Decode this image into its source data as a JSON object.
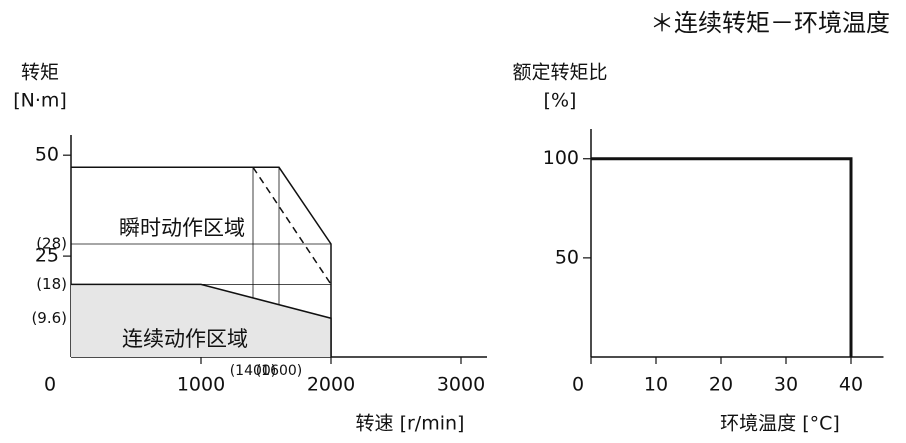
{
  "header": "＊连续转矩－环境温度",
  "chart_data": [
    {
      "type": "line",
      "ylabel": [
        "转矩",
        "[N·m]"
      ],
      "xlabel": "转速 [r/min]",
      "xlim": [
        0,
        3200
      ],
      "ylim": [
        0,
        55
      ],
      "xticks": [
        0,
        1000,
        {
          "value": 1400,
          "label": "(1400)"
        },
        {
          "value": 1600,
          "label": "(1600)"
        },
        2000,
        3000
      ],
      "yticks": [
        {
          "value": 9.6,
          "label": "(9.6)"
        },
        {
          "value": 18,
          "label": "(18)"
        },
        25,
        {
          "value": 28,
          "label": "(28)"
        },
        50
      ],
      "guides": true,
      "series": [
        {
          "name": "瞬时动作区域",
          "color": "#111111",
          "x": [
            0,
            1600,
            2000,
            2000
          ],
          "values": [
            47,
            47,
            28,
            0
          ]
        },
        {
          "name": "连续动作区域",
          "color": "#111111",
          "fill": "#e6e6e6",
          "x": [
            0,
            1000,
            2000,
            2000
          ],
          "values": [
            18,
            18,
            9.6,
            0
          ]
        },
        {
          "color": "#111111",
          "dash": true,
          "x": [
            1400,
            2000
          ],
          "values": [
            47,
            18
          ]
        }
      ]
    },
    {
      "type": "line",
      "ylabel": [
        "额定转矩比",
        "[%]"
      ],
      "xlabel": "环境温度 [°C]",
      "xlim": [
        0,
        45
      ],
      "ylim": [
        0,
        115
      ],
      "xticks": [
        0,
        10,
        20,
        30,
        40
      ],
      "yticks": [
        50,
        100
      ],
      "series": [
        {
          "color": "#111111",
          "width": 3,
          "x": [
            0,
            40,
            40
          ],
          "values": [
            100,
            100,
            0
          ]
        }
      ]
    }
  ]
}
